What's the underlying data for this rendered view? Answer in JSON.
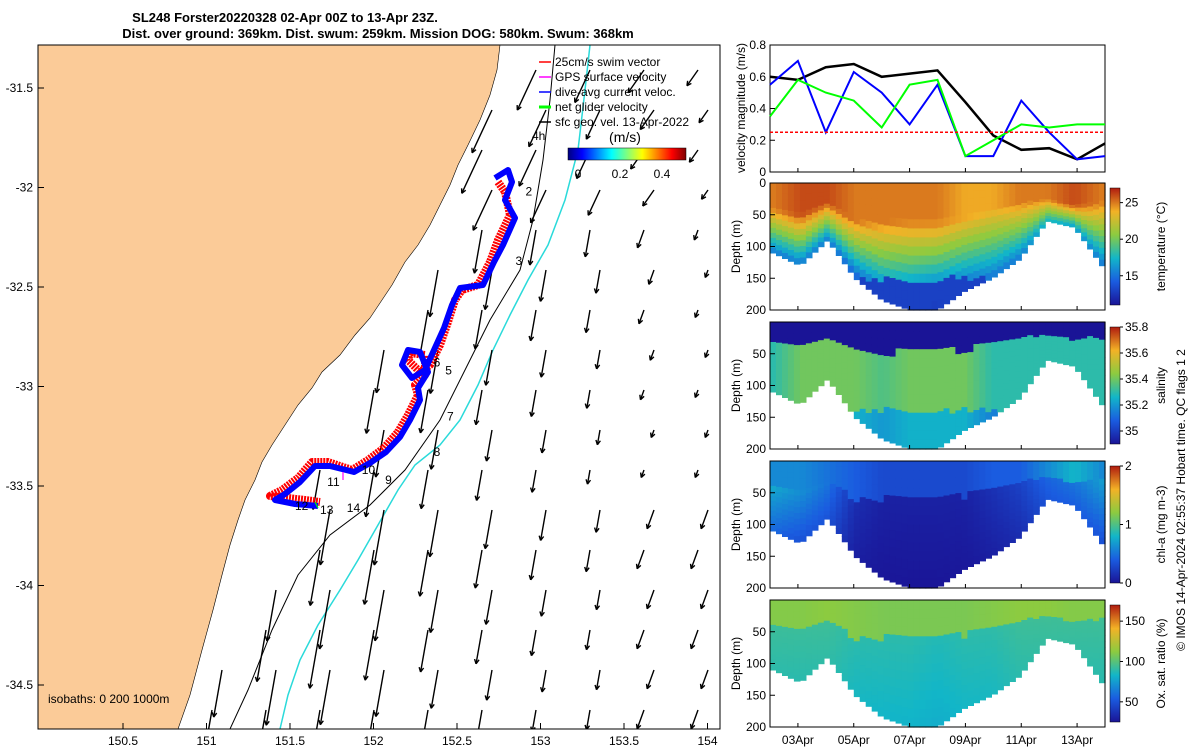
{
  "title": {
    "line1": "SL248 Forster20220328 02-Apr 00Z to 13-Apr 23Z.",
    "line2": "Dist. over ground: 369km. Dist. swum: 259km. Mission DOG: 580km. Swum: 368km"
  },
  "colors": {
    "land": "#FBCB98",
    "swim_vector": "#FF0000",
    "gps_velocity": "#FF00FF",
    "dive_avg": "#0000FF",
    "net_glider": "#00FF00",
    "sfc_geo": "#000000",
    "isobath_200": "#000000",
    "isobath_1000": "#2ADADA"
  },
  "map": {
    "legend": [
      {
        "label": "25cm/s swim vector",
        "color": "#FF0000"
      },
      {
        "label": "GPS surface velocity",
        "color": "#FF00FF"
      },
      {
        "label": "dive-avg current veloc.",
        "color": "#0000FF"
      },
      {
        "label": "net glider velocity",
        "color": "#00FF00"
      },
      {
        "label": "sfc geo. vel. 13-Apr-2022",
        "color": "#000000"
      }
    ],
    "colorbar_label": "(m/s)",
    "colorbar_ticks": [
      "0",
      "0.2",
      "0.4"
    ],
    "isobaths_text": "isobaths: 0   200  1000m",
    "arrow_label": "4h",
    "waypoints": [
      {
        "label": "2",
        "lon": 152.93,
        "lat": -32.02
      },
      {
        "label": "3",
        "lon": 152.87,
        "lat": -32.37
      },
      {
        "label": "5",
        "lon": 152.45,
        "lat": -32.92
      },
      {
        "label": "6",
        "lon": 152.38,
        "lat": -32.88
      },
      {
        "label": "7",
        "lon": 152.46,
        "lat": -33.15
      },
      {
        "label": "8",
        "lon": 152.38,
        "lat": -33.33
      },
      {
        "label": "9",
        "lon": 152.09,
        "lat": -33.47
      },
      {
        "label": "10",
        "lon": 151.97,
        "lat": -33.42
      },
      {
        "label": "11",
        "lon": 151.76,
        "lat": -33.48
      },
      {
        "label": "12",
        "lon": 151.57,
        "lat": -33.6
      },
      {
        "label": "13",
        "lon": 151.72,
        "lat": -33.62
      },
      {
        "label": "14",
        "lon": 151.88,
        "lat": -33.61
      }
    ],
    "xticks": [
      "150.5",
      "151",
      "151.5",
      "152",
      "152.5",
      "153",
      "153.5",
      "154"
    ],
    "yticks": [
      "-31.5",
      "-32",
      "-32.5",
      "-33",
      "-33.5",
      "-34",
      "-34.5"
    ]
  },
  "panels": {
    "velocity": {
      "ylabel": "velocity magnitude (m/s)",
      "yticks": [
        "0",
        "0.2",
        "0.4",
        "0.6",
        "0.8"
      ]
    },
    "temperature": {
      "ylabel": "Depth (m)",
      "cbar_label": "temperature (°C)",
      "cbar_ticks": [
        "15",
        "20",
        "25"
      ],
      "yticks": [
        "0",
        "50",
        "100",
        "150",
        "200"
      ]
    },
    "salinity": {
      "ylabel": "Depth (m)",
      "cbar_label": "salinity",
      "cbar_ticks": [
        "35",
        "35.2",
        "35.4",
        "35.6",
        "35.8"
      ],
      "yticks": [
        "50",
        "100",
        "150",
        "200"
      ]
    },
    "chla": {
      "ylabel": "Depth (m)",
      "cbar_label": "chl-a (mg m-3)",
      "cbar_ticks": [
        "0",
        "1",
        "2"
      ],
      "yticks": [
        "50",
        "100",
        "150",
        "200"
      ]
    },
    "oxygen": {
      "ylabel": "Depth (m)",
      "cbar_label": "Ox. sat. ratio (%)",
      "cbar_ticks": [
        "50",
        "100",
        "150"
      ],
      "yticks": [
        "50",
        "100",
        "150",
        "200"
      ]
    },
    "dates": [
      "03Apr",
      "05Apr",
      "07Apr",
      "09Apr",
      "11Apr",
      "13Apr"
    ]
  },
  "footer": "© IMOS 14-Apr-2024 02:55:37 Hobart time. QC flags 1  2",
  "chart_data": [
    {
      "type": "line",
      "title": "",
      "ylabel": "velocity magnitude (m/s)",
      "ylim": [
        0,
        0.8
      ],
      "x": [
        "02-Apr",
        "03-Apr",
        "04-Apr",
        "05-Apr",
        "06-Apr",
        "07-Apr",
        "08-Apr",
        "09-Apr",
        "10-Apr",
        "11-Apr",
        "12-Apr",
        "13-Apr",
        "14-Apr"
      ],
      "series": [
        {
          "name": "sfc geo. vel. 13-Apr-2022",
          "color": "#000000",
          "values": [
            0.6,
            0.58,
            0.66,
            0.68,
            0.6,
            0.62,
            0.64,
            0.44,
            0.23,
            0.14,
            0.15,
            0.08,
            0.18
          ]
        },
        {
          "name": "dive-avg current veloc.",
          "color": "#0000FF",
          "values": [
            0.55,
            0.7,
            0.25,
            0.63,
            0.5,
            0.3,
            0.55,
            0.1,
            0.1,
            0.45,
            0.25,
            0.08,
            0.1
          ]
        },
        {
          "name": "net glider velocity",
          "color": "#00FF00",
          "values": [
            0.35,
            0.58,
            0.5,
            0.45,
            0.28,
            0.55,
            0.58,
            0.1,
            0.2,
            0.3,
            0.28,
            0.3,
            0.3
          ]
        },
        {
          "name": "25cm/s swim vector",
          "color": "#FF0000",
          "values": [
            0.25,
            0.25,
            0.25,
            0.25,
            0.25,
            0.25,
            0.25,
            0.25,
            0.25,
            0.25,
            0.25,
            0.25,
            0.25
          ]
        }
      ]
    },
    {
      "type": "heatmap",
      "ylabel": "Depth (m)",
      "variable": "temperature (°C)",
      "ylim": [
        200,
        0
      ],
      "colorbar_range": [
        11,
        27
      ],
      "x": [
        "02-Apr",
        "03-Apr",
        "04-Apr",
        "05-Apr",
        "06-Apr",
        "07-Apr",
        "08-Apr",
        "09-Apr",
        "10-Apr",
        "11-Apr",
        "12-Apr",
        "13-Apr",
        "14-Apr"
      ],
      "max_depth": [
        110,
        130,
        90,
        150,
        185,
        200,
        200,
        170,
        150,
        120,
        60,
        70,
        130
      ],
      "mixed_layer_depth": [
        40,
        50,
        30,
        60,
        60,
        60,
        60,
        55,
        40,
        30,
        25,
        35,
        30
      ],
      "surface_value": [
        25,
        26,
        26,
        25,
        25,
        25,
        25,
        24,
        24,
        25,
        25,
        26,
        25
      ],
      "deep_value": [
        15,
        15,
        15,
        14,
        14,
        13,
        12,
        14,
        15,
        15,
        17,
        16,
        15
      ]
    },
    {
      "type": "heatmap",
      "ylabel": "Depth (m)",
      "variable": "salinity",
      "ylim": [
        200,
        0
      ],
      "colorbar_range": [
        34.9,
        35.8
      ],
      "x": [
        "02-Apr",
        "03-Apr",
        "04-Apr",
        "05-Apr",
        "06-Apr",
        "07-Apr",
        "08-Apr",
        "09-Apr",
        "10-Apr",
        "11-Apr",
        "12-Apr",
        "13-Apr",
        "14-Apr"
      ],
      "max_depth": [
        110,
        130,
        90,
        150,
        185,
        200,
        200,
        170,
        150,
        120,
        60,
        70,
        130
      ],
      "mixed_layer_depth": [
        40,
        50,
        30,
        60,
        60,
        60,
        60,
        55,
        40,
        30,
        25,
        35,
        30
      ],
      "surface_value": [
        34.9,
        34.9,
        34.9,
        34.9,
        34.9,
        34.9,
        34.9,
        34.9,
        34.9,
        34.9,
        34.9,
        34.9,
        34.9
      ],
      "deep_value": [
        35.3,
        35.4,
        35.4,
        35.4,
        35.35,
        35.4,
        35.4,
        35.4,
        35.3,
        35.3,
        35.3,
        35.3,
        35.3
      ]
    },
    {
      "type": "heatmap",
      "ylabel": "Depth (m)",
      "variable": "chl-a (mg m-3)",
      "ylim": [
        200,
        0
      ],
      "colorbar_range": [
        0,
        2
      ],
      "x": [
        "02-Apr",
        "03-Apr",
        "04-Apr",
        "05-Apr",
        "06-Apr",
        "07-Apr",
        "08-Apr",
        "09-Apr",
        "10-Apr",
        "11-Apr",
        "12-Apr",
        "13-Apr",
        "14-Apr"
      ],
      "max_depth": [
        110,
        130,
        90,
        150,
        185,
        200,
        200,
        170,
        150,
        120,
        60,
        70,
        130
      ],
      "mixed_layer_depth": [
        40,
        50,
        30,
        60,
        60,
        60,
        60,
        55,
        40,
        30,
        25,
        35,
        30
      ],
      "surface_value": [
        0.6,
        0.6,
        0.5,
        0.4,
        0.3,
        0.3,
        0.3,
        0.3,
        0.4,
        0.4,
        0.6,
        0.8,
        0.6
      ],
      "deep_value": [
        0.9,
        0.8,
        0.6,
        0.2,
        0.1,
        0.1,
        0.1,
        0.1,
        0.2,
        0.3,
        0.5,
        0.6,
        0.8
      ]
    },
    {
      "type": "heatmap",
      "ylabel": "Depth (m)",
      "variable": "Ox. sat. ratio (%)",
      "ylim": [
        200,
        0
      ],
      "colorbar_range": [
        25,
        170
      ],
      "x": [
        "02-Apr",
        "03-Apr",
        "04-Apr",
        "05-Apr",
        "06-Apr",
        "07-Apr",
        "08-Apr",
        "09-Apr",
        "10-Apr",
        "11-Apr",
        "12-Apr",
        "13-Apr",
        "14-Apr"
      ],
      "max_depth": [
        110,
        130,
        90,
        150,
        185,
        200,
        200,
        170,
        150,
        120,
        60,
        70,
        130
      ],
      "mixed_layer_depth": [
        40,
        50,
        30,
        60,
        60,
        60,
        60,
        55,
        40,
        30,
        25,
        35,
        30
      ],
      "surface_value": [
        110,
        110,
        112,
        110,
        108,
        108,
        108,
        108,
        110,
        112,
        112,
        110,
        110
      ],
      "deep_value": [
        95,
        95,
        95,
        92,
        92,
        92,
        90,
        92,
        92,
        95,
        95,
        95,
        95
      ]
    }
  ]
}
